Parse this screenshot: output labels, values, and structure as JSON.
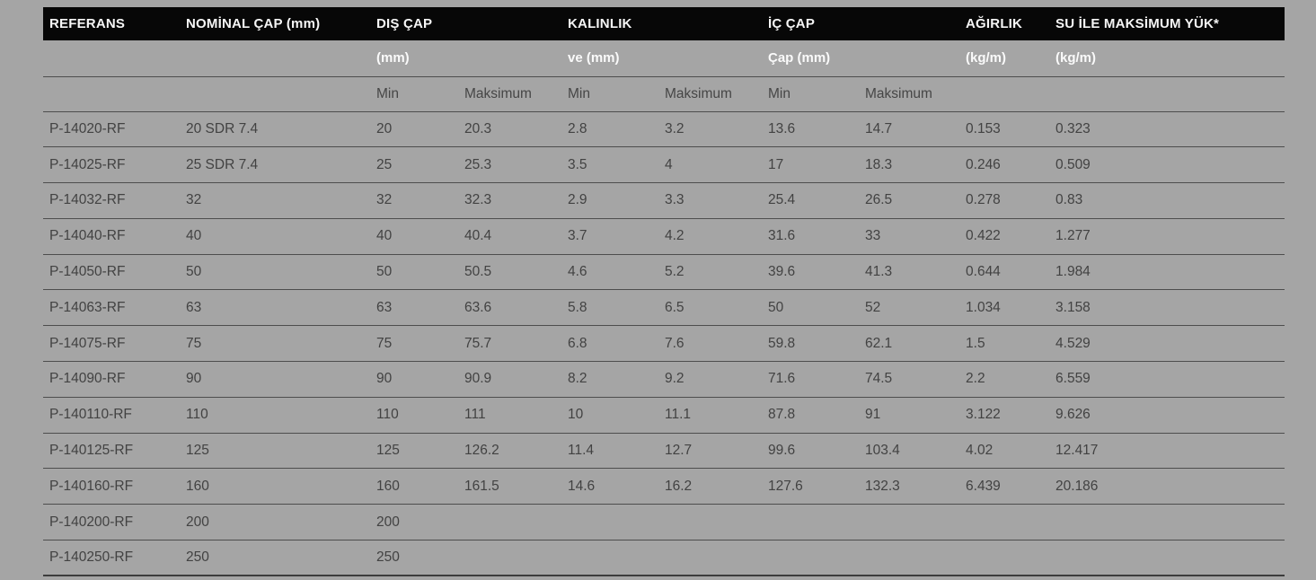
{
  "page": {
    "background_color": "#a5a5a5",
    "header_bar_color": "#070707",
    "line_color": "#4d4d4d",
    "header_text_color": "#f6f6f6",
    "body_text_color": "#424242"
  },
  "table": {
    "header": {
      "referans": "REFERANS",
      "nominal": "NOMİNAL ÇAP (mm)",
      "dis_cap": "DIŞ ÇAP",
      "kalinlik": "KALINLIK",
      "ic_cap": "İÇ ÇAP",
      "agirlik": "AĞIRLIK",
      "su_yuk": "SU İLE MAKSİMUM YÜK*",
      "dis_cap_unit": "(mm)",
      "kalinlik_unit": "ve (mm)",
      "ic_cap_unit": "Çap (mm)",
      "agirlik_unit": "(kg/m)",
      "su_yuk_unit": "(kg/m)",
      "min": "Min",
      "maksimum": "Maksimum"
    },
    "rows": [
      [
        "P-14020-RF",
        "20 SDR 7.4",
        "20",
        "20.3",
        "2.8",
        "3.2",
        "13.6",
        "14.7",
        "0.153",
        "0.323"
      ],
      [
        "P-14025-RF",
        "25 SDR 7.4",
        "25",
        "25.3",
        "3.5",
        "4",
        "17",
        "18.3",
        "0.246",
        "0.509"
      ],
      [
        "P-14032-RF",
        "32",
        "32",
        "32.3",
        "2.9",
        "3.3",
        "25.4",
        "26.5",
        "0.278",
        "0.83"
      ],
      [
        "P-14040-RF",
        "40",
        "40",
        "40.4",
        "3.7",
        "4.2",
        "31.6",
        "33",
        "0.422",
        "1.277"
      ],
      [
        "P-14050-RF",
        "50",
        "50",
        "50.5",
        "4.6",
        "5.2",
        "39.6",
        "41.3",
        "0.644",
        "1.984"
      ],
      [
        "P-14063-RF",
        "63",
        "63",
        "63.6",
        "5.8",
        "6.5",
        "50",
        "52",
        "1.034",
        "3.158"
      ],
      [
        "P-14075-RF",
        "75",
        "75",
        "75.7",
        "6.8",
        "7.6",
        "59.8",
        "62.1",
        "1.5",
        "4.529"
      ],
      [
        "P-14090-RF",
        "90",
        "90",
        "90.9",
        "8.2",
        "9.2",
        "71.6",
        "74.5",
        "2.2",
        "6.559"
      ],
      [
        "P-140110-RF",
        "110",
        "110",
        "111",
        "10",
        "11.1",
        "87.8",
        "91",
        "3.122",
        "9.626"
      ],
      [
        "P-140125-RF",
        "125",
        "125",
        "126.2",
        "11.4",
        "12.7",
        "99.6",
        "103.4",
        "4.02",
        "12.417"
      ],
      [
        "P-140160-RF",
        "160",
        "160",
        "161.5",
        "14.6",
        "16.2",
        "127.6",
        "132.3",
        "6.439",
        "20.186"
      ],
      [
        "P-140200-RF",
        "200",
        "200",
        "",
        "",
        "",
        "",
        "",
        "",
        ""
      ],
      [
        "P-140250-RF",
        "250",
        "250",
        "",
        "",
        "",
        "",
        "",
        "",
        ""
      ]
    ]
  }
}
